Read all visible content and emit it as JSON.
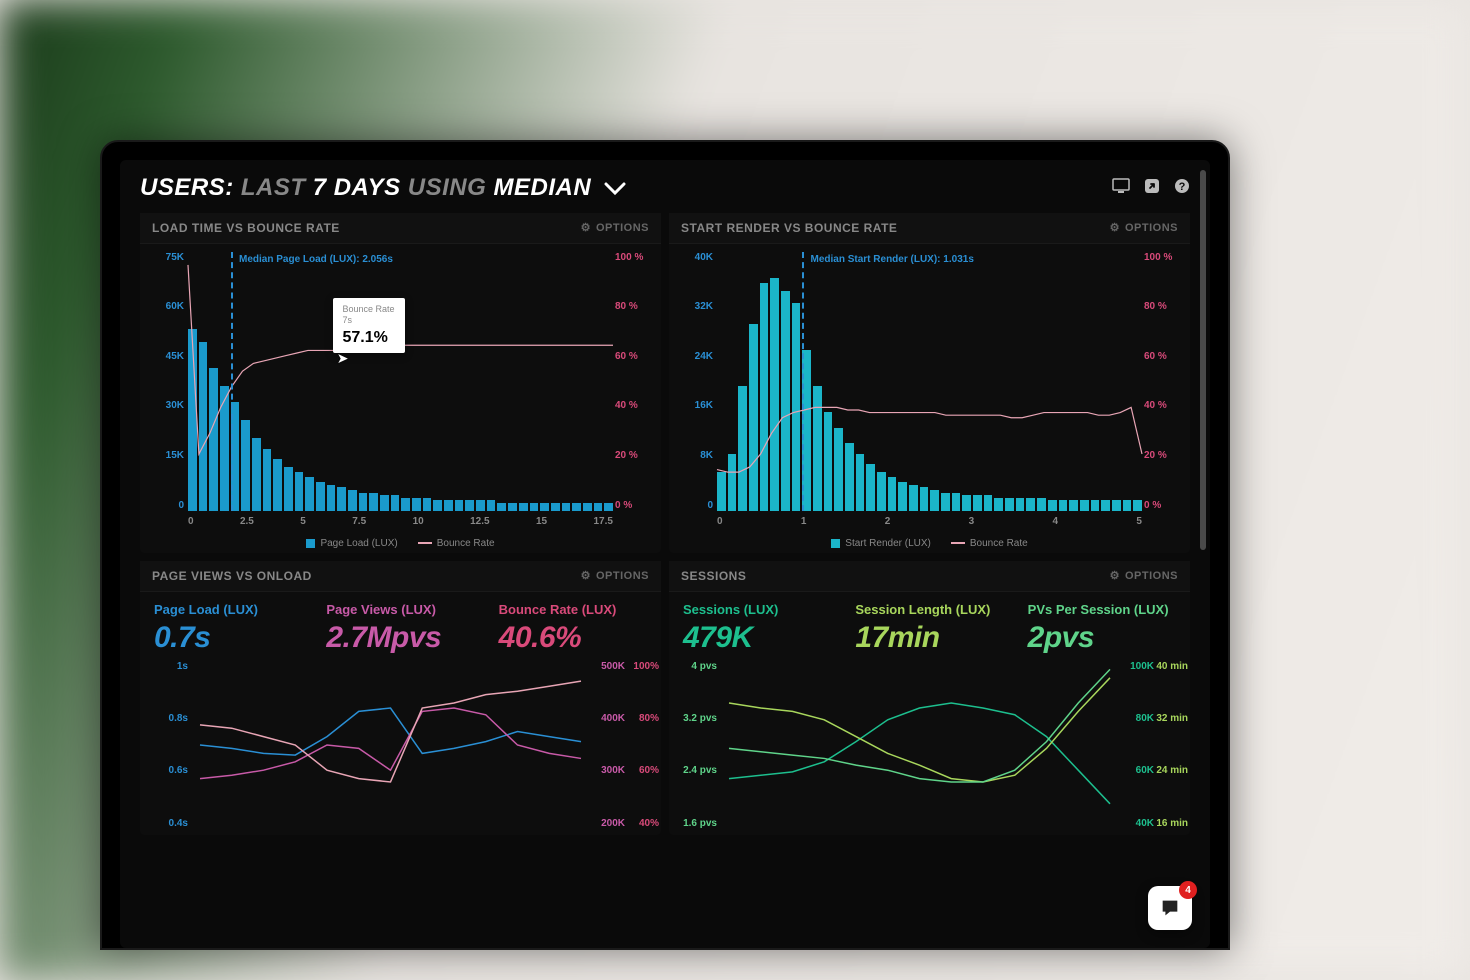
{
  "header": {
    "prefix": "USERS:",
    "mid1": "LAST",
    "bold1": "7 DAYS",
    "mid2": "USING",
    "bold2": "MEDIAN"
  },
  "icons": {
    "monitor": "⌗",
    "share": "↗",
    "help": "?"
  },
  "options_label": "OPTIONS",
  "panels": {
    "p1": {
      "title": "LOAD TIME VS BOUNCE RATE",
      "chart": {
        "type": "bar+line",
        "left_axis": {
          "ticks": [
            "75K",
            "60K",
            "45K",
            "30K",
            "15K",
            "0"
          ],
          "color": "#2a8fd4"
        },
        "right_axis": {
          "ticks": [
            "100 %",
            "80 %",
            "60 %",
            "40 %",
            "20 %",
            "0 %"
          ],
          "color": "#d94a7a"
        },
        "x_axis": {
          "ticks": [
            "0",
            "2.5",
            "5",
            "7.5",
            "10",
            "12.5",
            "15",
            "17.5"
          ]
        },
        "bar_color": "#1a9acc",
        "bars": [
          70,
          65,
          55,
          48,
          42,
          35,
          28,
          24,
          20,
          17,
          15,
          13,
          11,
          10,
          9,
          8,
          7,
          7,
          6,
          6,
          5,
          5,
          5,
          4,
          4,
          4,
          4,
          4,
          4,
          3,
          3,
          3,
          3,
          3,
          3,
          3,
          3,
          3,
          3,
          3
        ],
        "line_color": "#e8a5b5",
        "line_points": [
          95,
          22,
          30,
          40,
          48,
          54,
          57,
          58,
          59,
          60,
          61,
          62,
          62,
          62,
          62,
          63,
          63,
          63,
          63,
          64,
          64,
          64,
          64,
          64,
          64,
          64,
          64,
          64,
          64,
          64,
          64,
          64,
          64,
          64,
          64,
          64,
          64,
          64,
          64,
          64
        ],
        "median": {
          "pos_pct": 10,
          "label": "Median Page Load (LUX): 2.056s"
        },
        "tooltip": {
          "left_pct": 34,
          "top_pct": 18,
          "label": "Bounce Rate",
          "sub": "7s",
          "value": "57.1%"
        },
        "legend": [
          {
            "type": "box",
            "color": "#1a9acc",
            "label": "Page Load (LUX)"
          },
          {
            "type": "line",
            "color": "#e8a5b5",
            "label": "Bounce Rate"
          }
        ]
      }
    },
    "p2": {
      "title": "START RENDER VS BOUNCE RATE",
      "chart": {
        "type": "bar+line",
        "left_axis": {
          "ticks": [
            "40K",
            "32K",
            "24K",
            "16K",
            "8K",
            "0"
          ],
          "color": "#2a8fd4"
        },
        "right_axis": {
          "ticks": [
            "100 %",
            "80 %",
            "60 %",
            "40 %",
            "20 %",
            "0 %"
          ],
          "color": "#d94a7a"
        },
        "x_axis": {
          "ticks": [
            "0",
            "1",
            "2",
            "3",
            "4",
            "5"
          ]
        },
        "bar_color": "#1bb5c9",
        "bars": [
          15,
          22,
          48,
          72,
          88,
          90,
          85,
          80,
          62,
          48,
          38,
          32,
          26,
          22,
          18,
          15,
          13,
          11,
          10,
          9,
          8,
          7,
          7,
          6,
          6,
          6,
          5,
          5,
          5,
          5,
          5,
          4,
          4,
          4,
          4,
          4,
          4,
          4,
          4,
          4
        ],
        "line_color": "#e8a5b5",
        "line_points": [
          16,
          15,
          15,
          17,
          22,
          30,
          36,
          38,
          39,
          40,
          40,
          40,
          39,
          39,
          38,
          38,
          38,
          38,
          38,
          38,
          38,
          37,
          37,
          37,
          37,
          37,
          37,
          36,
          36,
          37,
          38,
          38,
          38,
          38,
          38,
          37,
          37,
          38,
          40,
          22
        ],
        "median": {
          "pos_pct": 20,
          "label": "Median Start Render (LUX): 1.031s"
        },
        "legend": [
          {
            "type": "box",
            "color": "#1bb5c9",
            "label": "Start Render (LUX)"
          },
          {
            "type": "line",
            "color": "#e8a5b5",
            "label": "Bounce Rate"
          }
        ]
      }
    },
    "p3": {
      "title": "PAGE VIEWS VS ONLOAD",
      "metrics": [
        {
          "label": "Page Load (LUX)",
          "value": "0.7s",
          "color": "#2a8fd4"
        },
        {
          "label": "Page Views (LUX)",
          "value": "2.7Mpvs",
          "color": "#c85aa8"
        },
        {
          "label": "Bounce Rate (LUX)",
          "value": "40.6%",
          "color": "#d94a7a"
        }
      ],
      "chart": {
        "left_axis": {
          "ticks": [
            "1s",
            "0.8s",
            "0.6s",
            "0.4s"
          ],
          "color": "#2a8fd4"
        },
        "right_axis1": {
          "ticks": [
            "500K",
            "400K",
            "300K",
            "200K"
          ],
          "color": "#c85aa8"
        },
        "right_axis2": {
          "ticks": [
            "100%",
            "80%",
            "60%",
            "40%"
          ],
          "color": "#d94a7a"
        },
        "lines": [
          {
            "color": "#2a8fd4",
            "points": [
              50,
              48,
              45,
              44,
              55,
              70,
              72,
              45,
              48,
              52,
              58,
              55,
              52
            ]
          },
          {
            "color": "#c85aa8",
            "points": [
              30,
              32,
              35,
              40,
              50,
              48,
              35,
              70,
              72,
              68,
              50,
              45,
              42
            ]
          },
          {
            "color": "#e8a5b5",
            "points": [
              62,
              60,
              55,
              50,
              35,
              30,
              28,
              72,
              75,
              80,
              82,
              85,
              88
            ]
          }
        ]
      }
    },
    "p4": {
      "title": "SESSIONS",
      "metrics": [
        {
          "label": "Sessions (LUX)",
          "value": "479K",
          "color": "#1dbf8e"
        },
        {
          "label": "Session Length (LUX)",
          "value": "17min",
          "color": "#a8d65c"
        },
        {
          "label": "PVs Per Session (LUX)",
          "value": "2pvs",
          "color": "#5fd48a"
        }
      ],
      "chart": {
        "left_axis": {
          "ticks": [
            "4 pvs",
            "3.2 pvs",
            "2.4 pvs",
            "1.6 pvs"
          ],
          "color": "#5fd48a"
        },
        "right_axis1": {
          "ticks": [
            "100K",
            "80K",
            "60K",
            "40K"
          ],
          "color": "#1dbf8e"
        },
        "right_axis2": {
          "ticks": [
            "40 min",
            "32 min",
            "24 min",
            "16 min"
          ],
          "color": "#a8d65c"
        },
        "lines": [
          {
            "color": "#1dbf8e",
            "points": [
              30,
              32,
              34,
              40,
              52,
              65,
              72,
              75,
              72,
              68,
              55,
              35,
              15
            ]
          },
          {
            "color": "#a8d65c",
            "points": [
              75,
              72,
              70,
              65,
              55,
              45,
              38,
              30,
              28,
              32,
              48,
              70,
              90
            ]
          },
          {
            "color": "#5fd48a",
            "points": [
              48,
              46,
              44,
              42,
              38,
              35,
              30,
              28,
              28,
              35,
              52,
              75,
              95
            ]
          }
        ]
      }
    }
  },
  "chat": {
    "count": "4"
  }
}
